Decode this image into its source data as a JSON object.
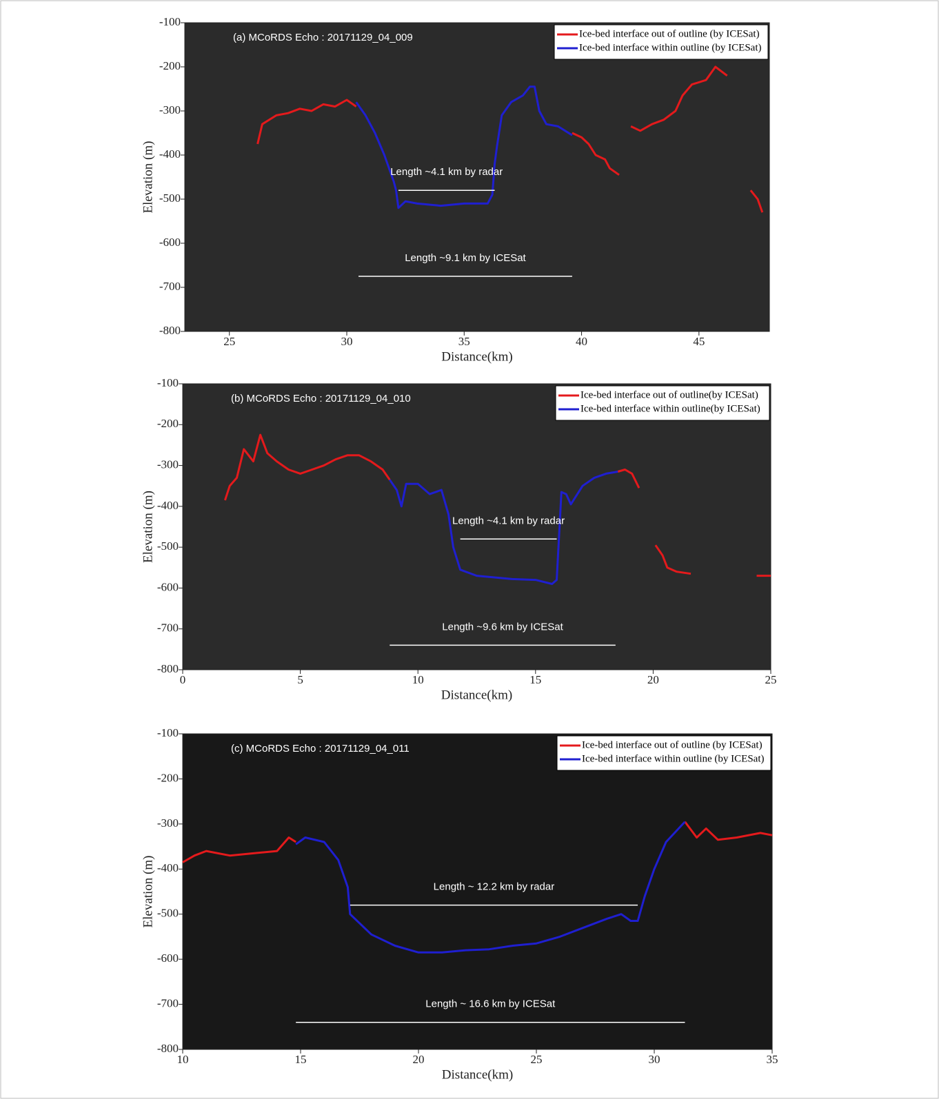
{
  "chart_data": [
    {
      "type": "line",
      "title": "(a) MCoRDS Echo :  20171129_04_009",
      "xlabel": "Distance(km)",
      "ylabel": "Elevation (m)",
      "xlim": [
        23.1,
        48
      ],
      "xticks": [
        25,
        30,
        35,
        40,
        45
      ],
      "ylim": [
        -800,
        -100
      ],
      "yticks": [
        -100,
        -200,
        -300,
        -400,
        -500,
        -600,
        -700,
        -800
      ],
      "plot_background": "#2b2b2b",
      "legend": "upper right",
      "series": [
        {
          "name": "Ice-bed interface out of outline (by ICESat)",
          "color": "#e41a1c",
          "x": [
            26.2,
            26.4,
            27,
            27.5,
            28,
            28.5,
            29,
            29.5,
            30,
            30.4,
            35,
            39.6,
            40,
            40.3,
            40.6,
            41,
            41.2,
            41.6,
            41.9,
            42.1,
            42.5,
            43,
            43.5,
            44,
            44.3,
            44.7,
            45.3,
            45.7,
            46.2,
            46.7,
            47.2,
            47.5,
            47.7
          ],
          "values": [
            -375,
            -330,
            -310,
            -305,
            -295,
            -300,
            -285,
            -290,
            -275,
            -290,
            null,
            -350,
            -360,
            -375,
            -400,
            -410,
            -430,
            -445,
            null,
            -335,
            -345,
            -330,
            -320,
            -300,
            -265,
            -240,
            -230,
            -200,
            -220,
            null,
            -480,
            -500,
            -530
          ]
        },
        {
          "name": "Ice-bed interface within outline (by ICESat)",
          "color": "#1f1fd0",
          "x": [
            30.4,
            30.8,
            31.2,
            31.6,
            32,
            32.1,
            32.2,
            32.5,
            33,
            34,
            35,
            36,
            36.2,
            36.3,
            36.4,
            36.6,
            37,
            37.5,
            37.8,
            38,
            38.2,
            38.5,
            39,
            39.3,
            39.6
          ],
          "values": [
            -280,
            -310,
            -350,
            -400,
            -460,
            -480,
            -520,
            -505,
            -510,
            -515,
            -510,
            -510,
            -490,
            -420,
            -380,
            -310,
            -280,
            -265,
            -245,
            -245,
            -300,
            -330,
            -335,
            -345,
            -355
          ]
        }
      ],
      "annotations": [
        {
          "text": "Length ~4.1 km by radar",
          "x": [
            32.2,
            36.3
          ],
          "y": -480
        },
        {
          "text": "Length ~9.1 km by ICESat",
          "x": [
            30.5,
            39.6
          ],
          "y": -675
        }
      ]
    },
    {
      "type": "line",
      "title": "(b) MCoRDS Echo :  20171129_04_010",
      "xlabel": "Distance(km)",
      "ylabel": "Elevation (m)",
      "xlim": [
        0,
        25
      ],
      "xticks": [
        0,
        5,
        10,
        15,
        20,
        25
      ],
      "ylim": [
        -800,
        -100
      ],
      "yticks": [
        -100,
        -200,
        -300,
        -400,
        -500,
        -600,
        -700,
        -800
      ],
      "plot_background": "#2b2b2b",
      "legend": "upper right",
      "series": [
        {
          "name": "Ice-bed interface out of outline(by  ICESat)",
          "color": "#e41a1c",
          "x": [
            1.8,
            2,
            2.3,
            2.6,
            3,
            3.3,
            3.6,
            4,
            4.5,
            5,
            5.5,
            6,
            6.5,
            7,
            7.5,
            8,
            8.5,
            8.8,
            13,
            18.5,
            18.8,
            19.1,
            19.4,
            19.8,
            20.1,
            20.4,
            20.6,
            21,
            21.6,
            23,
            24.4,
            25
          ],
          "values": [
            -385,
            -350,
            -330,
            -260,
            -290,
            -225,
            -270,
            -290,
            -310,
            -320,
            -310,
            -300,
            -285,
            -275,
            -275,
            -290,
            -310,
            -335,
            null,
            -315,
            -310,
            -320,
            -355,
            null,
            -495,
            -520,
            -550,
            -560,
            -565,
            null,
            -570,
            -570
          ]
        },
        {
          "name": "Ice-bed interface within outline(by  ICESat)",
          "color": "#1f1fd0",
          "x": [
            8.8,
            9.1,
            9.3,
            9.5,
            10,
            10.5,
            11,
            11.3,
            11.5,
            11.8,
            12.5,
            14,
            15,
            15.7,
            15.9,
            16.1,
            16.3,
            16.5,
            17,
            17.5,
            18,
            18.5
          ],
          "values": [
            -335,
            -360,
            -400,
            -345,
            -345,
            -370,
            -360,
            -420,
            -500,
            -555,
            -570,
            -578,
            -580,
            -590,
            -580,
            -365,
            -370,
            -395,
            -350,
            -330,
            -320,
            -315
          ]
        }
      ],
      "annotations": [
        {
          "text": "Length ~4.1 km by radar",
          "x": [
            11.8,
            15.9
          ],
          "y": -480
        },
        {
          "text": "Length ~9.6 km by ICESat",
          "x": [
            8.8,
            18.4
          ],
          "y": -740
        }
      ]
    },
    {
      "type": "line",
      "title": "(c) MCoRDS Echo :  20171129_04_011",
      "xlabel": "Distance(km)",
      "ylabel": "Elevation (m)",
      "xlim": [
        10,
        35
      ],
      "xticks": [
        10,
        15,
        20,
        25,
        30,
        35
      ],
      "ylim": [
        -800,
        -100
      ],
      "yticks": [
        -100,
        -200,
        -300,
        -400,
        -500,
        -600,
        -700,
        -800
      ],
      "plot_background": "#181818",
      "legend": "upper right",
      "series": [
        {
          "name": "Ice-bed interface out of outline (by ICESat)",
          "color": "#e41a1c",
          "x": [
            10,
            10.5,
            11,
            12,
            13,
            14,
            14.5,
            14.8,
            23,
            31.3,
            31.8,
            32.2,
            32.7,
            33.5,
            34.5,
            35
          ],
          "values": [
            -385,
            -370,
            -360,
            -370,
            -365,
            -360,
            -330,
            -340,
            null,
            -295,
            -330,
            -310,
            -335,
            -330,
            -320,
            -325
          ]
        },
        {
          "name": "Ice-bed interface within outline (by ICESat)",
          "color": "#1f1fd0",
          "x": [
            14.8,
            15.2,
            16,
            16.6,
            17,
            17.1,
            17.5,
            18,
            19,
            20,
            21,
            22,
            23,
            24,
            25,
            26,
            27,
            28,
            28.6,
            29,
            29.3,
            29.6,
            30,
            30.5,
            31.3
          ],
          "values": [
            -345,
            -330,
            -340,
            -380,
            -440,
            -500,
            -520,
            -545,
            -570,
            -585,
            -585,
            -580,
            -578,
            -570,
            -565,
            -550,
            -530,
            -510,
            -500,
            -515,
            -515,
            -460,
            -400,
            -340,
            -295
          ]
        }
      ],
      "annotations": [
        {
          "text": "Length ~ 12.2 km by radar",
          "x": [
            17.1,
            29.3
          ],
          "y": -480
        },
        {
          "text": "Length ~ 16.6 km by ICESat",
          "x": [
            14.8,
            31.3
          ],
          "y": -740
        }
      ]
    }
  ]
}
